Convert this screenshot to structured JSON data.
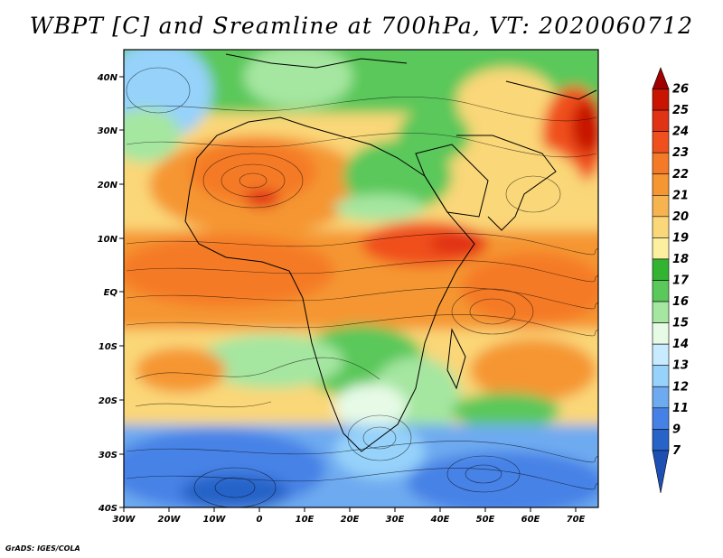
{
  "title": "WBPT [C] and Sreamline at 700hPa, VT: 2020060712",
  "credit": "GrADS: IGES/COLA",
  "map": {
    "lat_ticks": [
      "40N",
      "30N",
      "20N",
      "10N",
      "EQ",
      "10S",
      "20S",
      "30S",
      "40S"
    ],
    "lon_ticks": [
      "30W",
      "20W",
      "10W",
      "0",
      "10E",
      "20E",
      "30E",
      "40E",
      "50E",
      "60E",
      "70E"
    ],
    "field": "WBPT",
    "units": "C",
    "level": "700hPa",
    "valid_time": "2020060712"
  },
  "colorbar": {
    "levels": [
      "26",
      "25",
      "24",
      "23",
      "22",
      "21",
      "20",
      "19",
      "18",
      "17",
      "16",
      "15",
      "14",
      "13",
      "12",
      "11",
      "9",
      "7"
    ],
    "colors": [
      "#a00000",
      "#c81400",
      "#e03214",
      "#f0501e",
      "#f57a28",
      "#f59632",
      "#f5b450",
      "#fad778",
      "#fcf0a0",
      "#32b432",
      "#5ac85a",
      "#a5e6a0",
      "#e6fae6",
      "#c8ebff",
      "#96d2fa",
      "#6eaaf0",
      "#4682e6",
      "#2864c8",
      "#1e50b4"
    ]
  }
}
